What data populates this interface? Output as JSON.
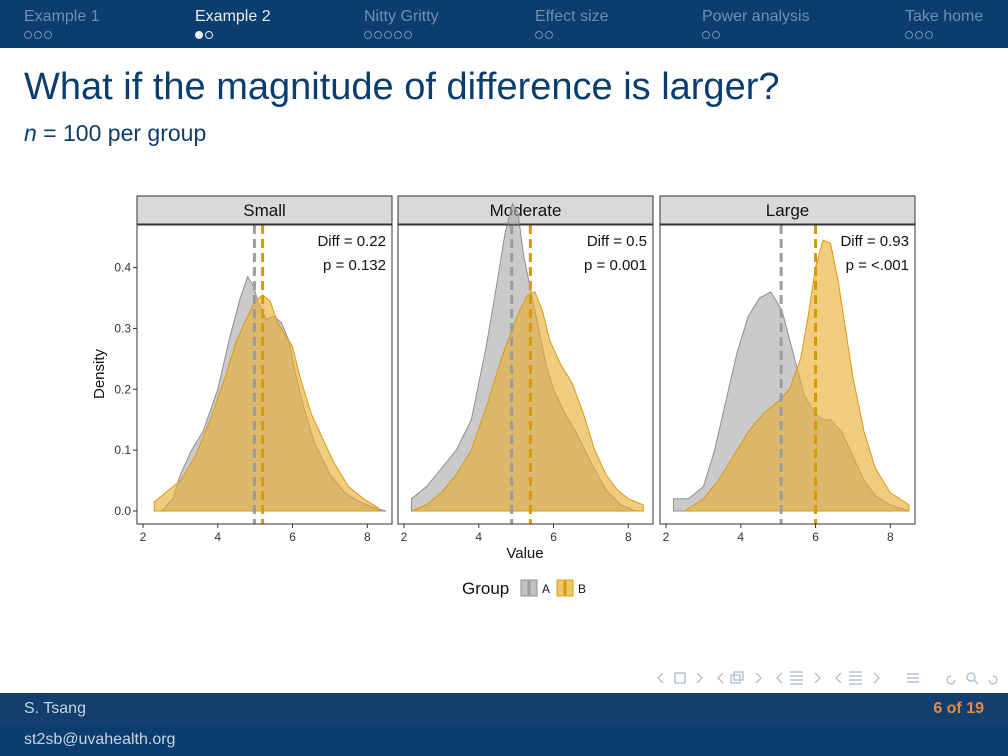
{
  "nav": [
    {
      "label": "Example 1",
      "active": false,
      "dots": 3,
      "filled": 0
    },
    {
      "label": "Example 2",
      "active": true,
      "dots": 2,
      "filled": 1
    },
    {
      "label": "Nitty Gritty",
      "active": false,
      "dots": 5,
      "filled": 0
    },
    {
      "label": "Effect size",
      "active": false,
      "dots": 2,
      "filled": 0
    },
    {
      "label": "Power analysis",
      "active": false,
      "dots": 2,
      "filled": 0
    },
    {
      "label": "Take home",
      "active": false,
      "dots": 3,
      "filled": 0
    }
  ],
  "title": "What if the magnitude of difference is larger?",
  "subtitle": {
    "var": "n",
    "rest": " = 100 per group"
  },
  "footer": {
    "author": "S. Tsang",
    "email": "st2sb@uvahealth.org",
    "page": "6 of 19"
  },
  "colors": {
    "A": "#a6a6a6",
    "B": "#e8ad2e",
    "meanA": "#9c9c9c",
    "meanB": "#d79a00",
    "strip": "#d9d9d9"
  },
  "chart_data": {
    "type": "area",
    "xlabel": "Value",
    "ylabel": "Density",
    "xlim": [
      2,
      8.5
    ],
    "ylim": [
      0,
      0.47
    ],
    "xticks": [
      2,
      4,
      6,
      8
    ],
    "yticks": [
      0.0,
      0.1,
      0.2,
      0.3,
      0.4
    ],
    "ytick_labels": [
      "0.0",
      "0.1",
      "0.2",
      "0.3",
      "0.4"
    ],
    "legend": {
      "title": "Group",
      "placement": "bottom",
      "entries": [
        "A",
        "B"
      ]
    },
    "panels": [
      {
        "strip": "Small",
        "annotation": [
          "Diff = 0.22",
          "p = 0.132"
        ],
        "meanA": 4.98,
        "meanB": 5.2,
        "series": [
          {
            "name": "A",
            "x": [
              2.5,
              2.8,
              3.0,
              3.3,
              3.6,
              4.0,
              4.3,
              4.6,
              4.8,
              4.95,
              5.1,
              5.3,
              5.5,
              5.7,
              5.9,
              6.1,
              6.3,
              6.6,
              7.0,
              7.4,
              7.8,
              8.2,
              8.5
            ],
            "y": [
              0.0,
              0.02,
              0.06,
              0.1,
              0.13,
              0.2,
              0.28,
              0.35,
              0.385,
              0.37,
              0.34,
              0.315,
              0.32,
              0.31,
              0.28,
              0.22,
              0.17,
              0.11,
              0.06,
              0.03,
              0.015,
              0.005,
              0.0
            ]
          },
          {
            "name": "B",
            "x": [
              2.3,
              2.6,
              3.0,
              3.4,
              3.8,
              4.2,
              4.5,
              4.8,
              5.0,
              5.2,
              5.4,
              5.6,
              5.8,
              6.0,
              6.2,
              6.5,
              6.8,
              7.1,
              7.5,
              7.9,
              8.3
            ],
            "y": [
              0.015,
              0.03,
              0.05,
              0.09,
              0.15,
              0.22,
              0.28,
              0.32,
              0.345,
              0.355,
              0.345,
              0.31,
              0.29,
              0.27,
              0.22,
              0.16,
              0.12,
              0.08,
              0.04,
              0.02,
              0.005
            ]
          }
        ]
      },
      {
        "strip": "Moderate",
        "annotation": [
          "Diff = 0.5",
          "p = 0.001"
        ],
        "meanA": 4.88,
        "meanB": 5.38,
        "series": [
          {
            "name": "A",
            "x": [
              2.2,
              2.6,
              3.0,
              3.4,
              3.8,
              4.2,
              4.5,
              4.7,
              4.9,
              5.05,
              5.2,
              5.4,
              5.6,
              5.8,
              6.0,
              6.3,
              6.6,
              7.0,
              7.4,
              7.8,
              8.2
            ],
            "y": [
              0.02,
              0.04,
              0.07,
              0.1,
              0.15,
              0.27,
              0.38,
              0.455,
              0.505,
              0.49,
              0.42,
              0.36,
              0.3,
              0.24,
              0.2,
              0.16,
              0.13,
              0.08,
              0.035,
              0.01,
              0.0
            ]
          },
          {
            "name": "B",
            "x": [
              2.2,
              2.6,
              3.0,
              3.4,
              3.8,
              4.2,
              4.6,
              4.9,
              5.1,
              5.3,
              5.5,
              5.7,
              5.9,
              6.2,
              6.5,
              6.8,
              7.1,
              7.4,
              7.7,
              8.0,
              8.4
            ],
            "y": [
              0.0,
              0.01,
              0.03,
              0.06,
              0.1,
              0.17,
              0.25,
              0.3,
              0.33,
              0.355,
              0.36,
              0.33,
              0.28,
              0.24,
              0.21,
              0.16,
              0.1,
              0.06,
              0.035,
              0.02,
              0.01
            ]
          }
        ]
      },
      {
        "strip": "Large",
        "annotation": [
          "Diff = 0.93",
          "p = <.001"
        ],
        "meanA": 5.08,
        "meanB": 6.0,
        "series": [
          {
            "name": "A",
            "x": [
              2.2,
              2.6,
              3.0,
              3.3,
              3.6,
              3.9,
              4.2,
              4.5,
              4.8,
              5.1,
              5.4,
              5.7,
              6.0,
              6.2,
              6.4,
              6.7,
              7.0,
              7.3,
              7.6,
              8.0,
              8.5
            ],
            "y": [
              0.02,
              0.02,
              0.04,
              0.1,
              0.18,
              0.26,
              0.32,
              0.35,
              0.36,
              0.33,
              0.26,
              0.19,
              0.16,
              0.15,
              0.15,
              0.13,
              0.09,
              0.05,
              0.025,
              0.01,
              0.0
            ]
          },
          {
            "name": "B",
            "x": [
              2.5,
              3.0,
              3.4,
              3.8,
              4.2,
              4.6,
              5.0,
              5.3,
              5.6,
              5.8,
              6.0,
              6.2,
              6.4,
              6.6,
              6.8,
              7.0,
              7.3,
              7.6,
              8.0,
              8.5
            ],
            "y": [
              0.0,
              0.02,
              0.05,
              0.09,
              0.13,
              0.16,
              0.18,
              0.2,
              0.25,
              0.32,
              0.4,
              0.445,
              0.44,
              0.38,
              0.3,
              0.22,
              0.13,
              0.07,
              0.03,
              0.01
            ]
          }
        ]
      }
    ]
  }
}
